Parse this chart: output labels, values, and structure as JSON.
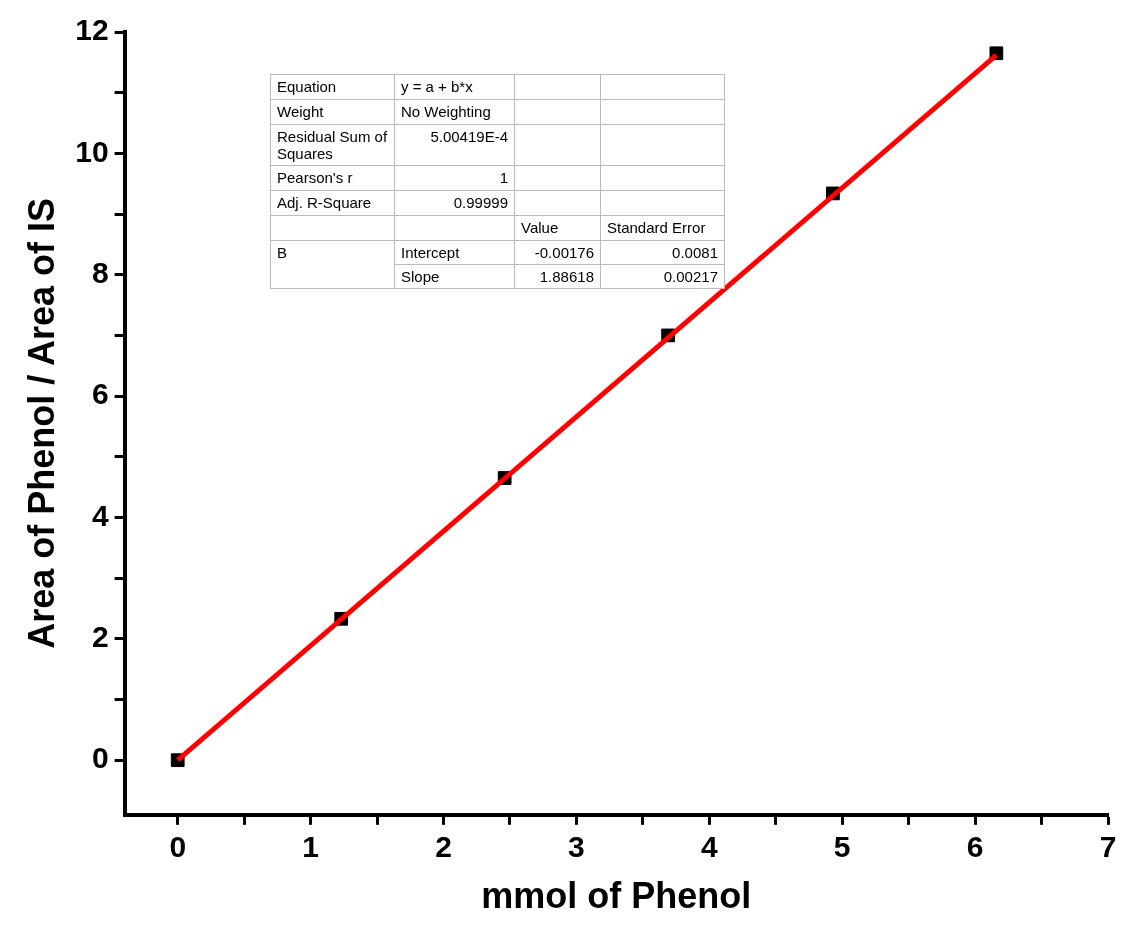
{
  "chart_data": {
    "type": "scatter",
    "xlabel": "mmol of Phenol",
    "ylabel": "Area of Phenol / Area of IS",
    "xlim": [
      -0.4,
      7
    ],
    "xticks": [
      0,
      {
        "value": 0.5,
        "label": null
      },
      1,
      {
        "value": 1.5,
        "label": null
      },
      2,
      {
        "value": 2.5,
        "label": null
      },
      3,
      {
        "value": 3.5,
        "label": null
      },
      4,
      {
        "value": 4.5,
        "label": null
      },
      5,
      {
        "value": 5.5,
        "label": null
      },
      6,
      {
        "value": 6.5,
        "label": null
      },
      7
    ],
    "ylim": [
      -0.9,
      12
    ],
    "yticks": [
      0,
      {
        "value": 1,
        "label": null
      },
      2,
      {
        "value": 3,
        "label": null
      },
      4,
      {
        "value": 5,
        "label": null
      },
      6,
      {
        "value": 7,
        "label": null
      },
      8,
      {
        "value": 9,
        "label": null
      },
      10,
      {
        "value": 11,
        "label": null
      },
      12
    ],
    "grid": false,
    "legend": false,
    "marker": "square",
    "series": [
      {
        "type": "scatter",
        "color": "#000000",
        "x": [
          0,
          1.23,
          2.46,
          3.69,
          4.93,
          6.16
        ],
        "values": [
          0,
          2.33,
          4.65,
          7.0,
          9.34,
          11.65
        ]
      },
      {
        "type": "line",
        "color": "#ff0000",
        "marker": "none",
        "line_style": "solid",
        "x": [
          0,
          6.16
        ],
        "values": [
          0,
          11.62
        ]
      }
    ],
    "annotations": [
      "Equation",
      "y = a + b*x",
      "Weight",
      "No Weighting",
      "Residual Sum of Squares",
      "5.00419E-4",
      "Pearson's r",
      "1",
      "Adj. R-Square",
      "0.99999",
      "Value",
      "Standard Error",
      "B",
      "Intercept",
      "-0.00176",
      "0.0081",
      "Slope",
      "1.88618",
      "0.00217"
    ]
  }
}
